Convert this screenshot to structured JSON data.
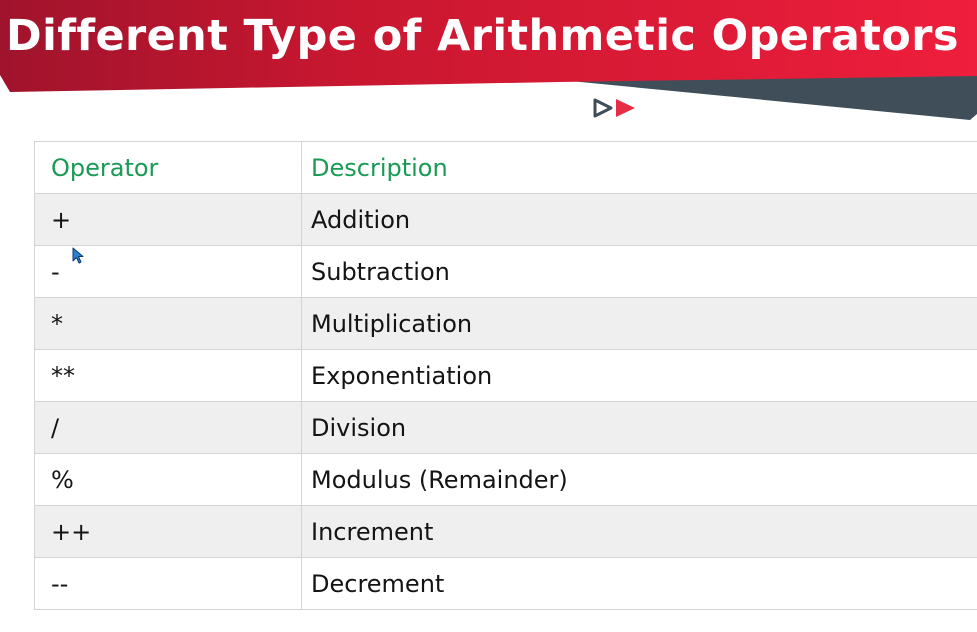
{
  "slide": {
    "title": "Different Type of Arithmetic Operators :"
  },
  "table": {
    "headers": {
      "operator": "Operator",
      "description": "Description"
    },
    "rows": [
      {
        "operator": "+",
        "description": "Addition"
      },
      {
        "operator": "-",
        "description": "Subtraction"
      },
      {
        "operator": "*",
        "description": "Multiplication"
      },
      {
        "operator": "**",
        "description": "Exponentiation"
      },
      {
        "operator": "/",
        "description": "Division"
      },
      {
        "operator": "%",
        "description": "Modulus (Remainder)"
      },
      {
        "operator": "++",
        "description": "Increment"
      },
      {
        "operator": "--",
        "description": "Decrement"
      }
    ]
  },
  "colors": {
    "banner_red": "#d8172f",
    "banner_dark": "#3f4e58",
    "header_text": "#1a9a55",
    "logo_red": "#e52d45"
  },
  "icons": {
    "logo": "play-logo-icon",
    "cursor": "mouse-pointer-icon"
  }
}
